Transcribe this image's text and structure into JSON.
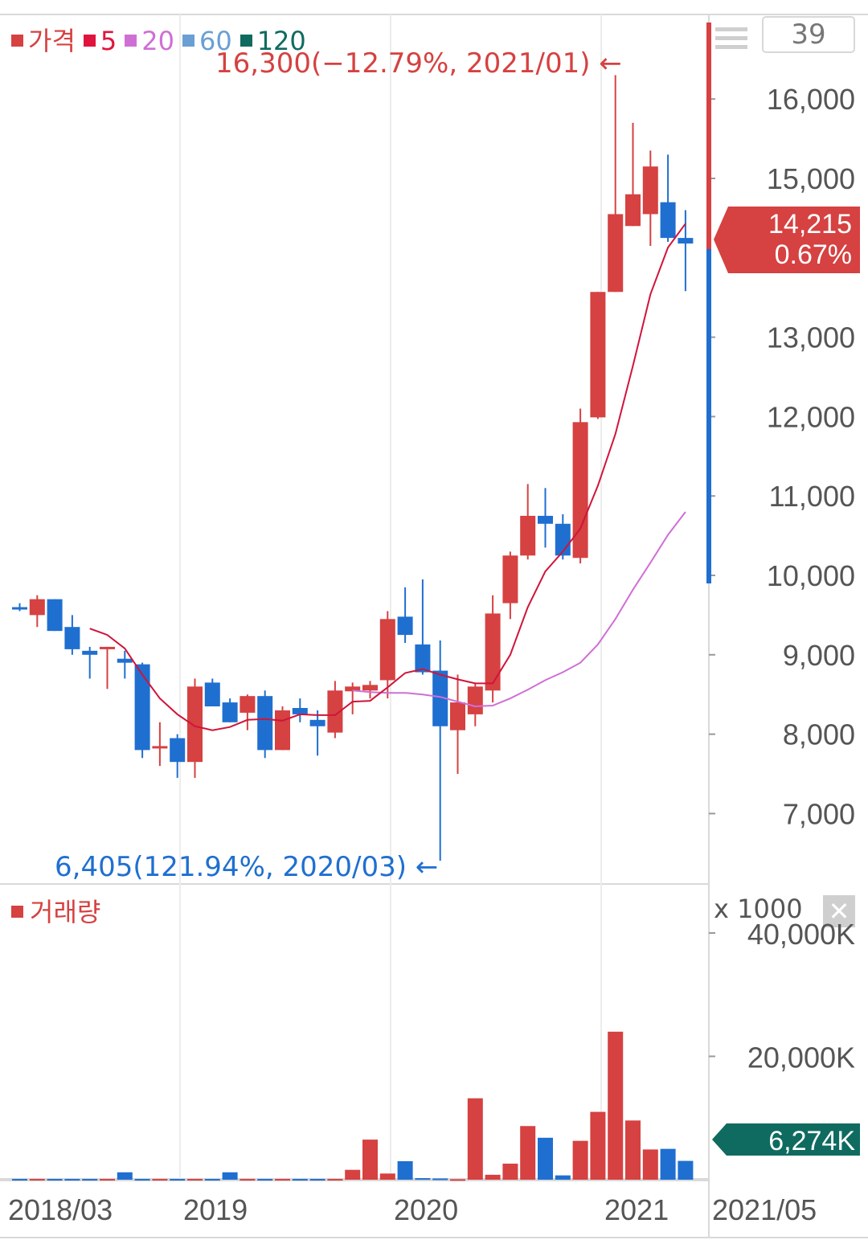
{
  "legend": [
    {
      "label": "가격",
      "color": "#d64141"
    },
    {
      "label": "5",
      "color": "#e0143c"
    },
    {
      "label": "20",
      "color": "#cf6fd6"
    },
    {
      "label": "60",
      "color": "#6a9fd4"
    },
    {
      "label": "120",
      "color": "#0f6b5f"
    }
  ],
  "period_button": "39",
  "volume_title": "거래량",
  "volume_unit": "x 1000",
  "close_icon": "close-icon",
  "colors": {
    "up": "#d64141",
    "down": "#1f6fd0",
    "ma5": "#d0143a",
    "ma20": "#cf6fd6",
    "badge_vol": "#0f6b5f"
  },
  "chart_data": {
    "type": "candlestick",
    "ylim": [
      6000,
      16900
    ],
    "price_ticks": [
      "16,000",
      "15,000",
      "13,000",
      "12,000",
      "11,000",
      "10,000",
      "9,000",
      "8,000",
      "7,000"
    ],
    "price_tick_values": [
      16000,
      15000,
      13000,
      12000,
      11000,
      10000,
      9000,
      8000,
      7000
    ],
    "x_ticks": [
      "2018/03",
      "2019",
      "2020",
      "2021"
    ],
    "x_end_label": "2021/05",
    "candles": [
      {
        "open": 9600,
        "high": 9650,
        "low": 9550,
        "close": 9570
      },
      {
        "open": 9500,
        "high": 9750,
        "low": 9350,
        "close": 9700
      },
      {
        "open": 9700,
        "high": 9700,
        "low": 9300,
        "close": 9300
      },
      {
        "open": 9350,
        "high": 9500,
        "low": 9000,
        "close": 9070
      },
      {
        "open": 9050,
        "high": 9100,
        "low": 8700,
        "close": 9000
      },
      {
        "open": 9100,
        "high": 9100,
        "low": 8570,
        "close": 9100
      },
      {
        "open": 8950,
        "high": 9050,
        "low": 8700,
        "close": 8900
      },
      {
        "open": 8880,
        "high": 8900,
        "low": 7700,
        "close": 7800
      },
      {
        "open": 7850,
        "high": 8150,
        "low": 7600,
        "close": 7850
      },
      {
        "open": 7950,
        "high": 8000,
        "low": 7450,
        "close": 7650
      },
      {
        "open": 7650,
        "high": 8700,
        "low": 7450,
        "close": 8600
      },
      {
        "open": 8650,
        "high": 8700,
        "low": 8350,
        "close": 8350
      },
      {
        "open": 8400,
        "high": 8450,
        "low": 8150,
        "close": 8150
      },
      {
        "open": 8270,
        "high": 8500,
        "low": 8050,
        "close": 8480
      },
      {
        "open": 8480,
        "high": 8550,
        "low": 7700,
        "close": 7800
      },
      {
        "open": 7800,
        "high": 8350,
        "low": 7800,
        "close": 8300
      },
      {
        "open": 8330,
        "high": 8450,
        "low": 8150,
        "close": 8250
      },
      {
        "open": 8180,
        "high": 8300,
        "low": 7730,
        "close": 8100
      },
      {
        "open": 8020,
        "high": 8670,
        "low": 7950,
        "close": 8550
      },
      {
        "open": 8540,
        "high": 8650,
        "low": 8250,
        "close": 8600
      },
      {
        "open": 8550,
        "high": 8670,
        "low": 8450,
        "close": 8620
      },
      {
        "open": 8680,
        "high": 9550,
        "low": 8450,
        "close": 9450
      },
      {
        "open": 9480,
        "high": 9850,
        "low": 9150,
        "close": 9250
      },
      {
        "open": 9130,
        "high": 9950,
        "low": 8750,
        "close": 8780
      },
      {
        "open": 8800,
        "high": 9180,
        "low": 6405,
        "close": 8100
      },
      {
        "open": 8050,
        "high": 8750,
        "low": 7500,
        "close": 8400
      },
      {
        "open": 8250,
        "high": 8650,
        "low": 8100,
        "close": 8600
      },
      {
        "open": 8550,
        "high": 9750,
        "low": 8400,
        "close": 9520
      },
      {
        "open": 9650,
        "high": 10300,
        "low": 9450,
        "close": 10250
      },
      {
        "open": 10250,
        "high": 11150,
        "low": 10200,
        "close": 10750
      },
      {
        "open": 10750,
        "high": 11100,
        "low": 10350,
        "close": 10650
      },
      {
        "open": 10650,
        "high": 10770,
        "low": 10200,
        "close": 10250
      },
      {
        "open": 10220,
        "high": 12100,
        "low": 10150,
        "close": 11930
      },
      {
        "open": 11990,
        "high": 13570,
        "low": 11970,
        "close": 13570
      },
      {
        "open": 13570,
        "high": 16300,
        "low": 13570,
        "close": 14550
      },
      {
        "open": 14400,
        "high": 15700,
        "low": 14400,
        "close": 14800
      },
      {
        "open": 14550,
        "high": 15350,
        "low": 14150,
        "close": 15150
      },
      {
        "open": 14700,
        "high": 15300,
        "low": 14200,
        "close": 14250
      },
      {
        "open": 14250,
        "high": 14600,
        "low": 13580,
        "close": 14180
      }
    ],
    "ma5": [
      null,
      null,
      null,
      null,
      9330,
      9250,
      9080,
      8750,
      8450,
      8250,
      8100,
      8050,
      8090,
      8180,
      8190,
      8170,
      8250,
      8240,
      8240,
      8410,
      8420,
      8590,
      8770,
      8820,
      8750,
      8690,
      8640,
      8640,
      9000,
      9600,
      10050,
      10300,
      10590,
      11130,
      11780,
      12640,
      13540,
      14130,
      14430
    ],
    "ma20": [
      null,
      null,
      null,
      null,
      null,
      null,
      null,
      null,
      null,
      null,
      null,
      null,
      null,
      null,
      null,
      null,
      null,
      null,
      null,
      8550,
      8530,
      8520,
      8520,
      8500,
      8470,
      8410,
      8350,
      8360,
      8450,
      8560,
      8680,
      8780,
      8900,
      9130,
      9450,
      9820,
      10160,
      10510,
      10800
    ],
    "volume": [
      120,
      120,
      120,
      120,
      120,
      120,
      1200,
      120,
      120,
      120,
      120,
      120,
      1200,
      120,
      120,
      120,
      120,
      120,
      120,
      1600,
      6500,
      1000,
      3000,
      250,
      200,
      80,
      13200,
      800,
      2600,
      8700,
      6800,
      700,
      6300,
      11000,
      24000,
      9600,
      4900,
      5000,
      3050
    ],
    "volume_ticks": [
      "40,000K",
      "20,000K"
    ],
    "volume_tick_values": [
      40000,
      20000
    ],
    "volume_max": 43000,
    "annotations": {
      "high": "16,300(−12.79%, 2021/01) ←",
      "low": "6,405(121.94%, 2020/03) ←"
    },
    "current_price": "14,215",
    "current_change": "0.67%",
    "current_volume": "6,274K"
  }
}
